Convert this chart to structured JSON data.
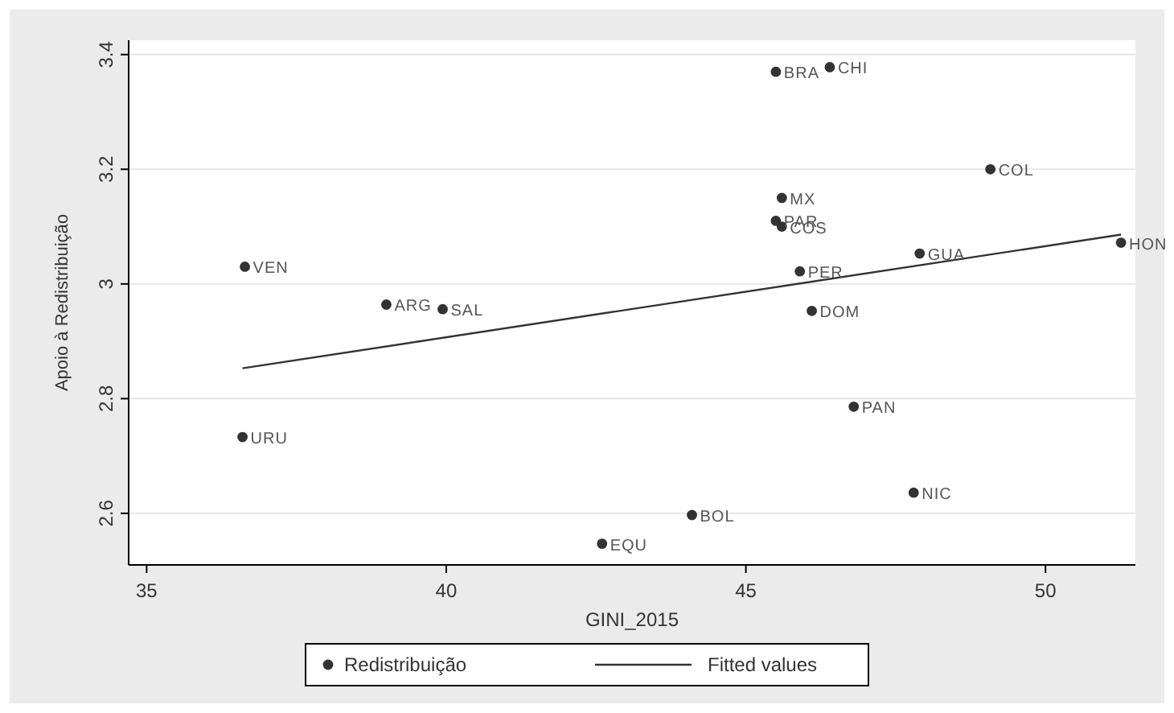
{
  "chart_data": {
    "type": "scatter",
    "xlabel": "GINI_2015",
    "ylabel": "Apoio à Redistribuição",
    "xlim": [
      34.7,
      51.5
    ],
    "xticks": [
      35,
      40,
      45,
      50
    ],
    "ylim": [
      2.51,
      3.425
    ],
    "yticks": [
      2.6,
      2.8,
      3,
      3.2,
      3.4
    ],
    "grid": "y",
    "legend": "bottom",
    "series": [
      {
        "name": "Redistribuição",
        "marker": "circle",
        "color": "#333333",
        "x": [
          36.64,
          39.0,
          39.94,
          36.6,
          45.5,
          46.4,
          49.08,
          45.6,
          45.5,
          45.6,
          45.9,
          47.9,
          51.26,
          46.1,
          46.8,
          47.8,
          44.1,
          42.6
        ],
        "values": [
          3.03,
          2.964,
          2.956,
          2.733,
          3.37,
          3.378,
          3.2,
          3.15,
          3.11,
          3.1,
          3.022,
          3.053,
          3.072,
          2.953,
          2.786,
          2.636,
          2.597,
          2.547
        ]
      },
      {
        "name": "Fitted values",
        "type": "line",
        "marker": "none",
        "color": "#333333",
        "x": [
          36.6,
          51.26
        ],
        "values": [
          2.853,
          3.086
        ]
      }
    ],
    "annotations": [
      {
        "text": "VEN",
        "x": 36.64,
        "y": 3.03
      },
      {
        "text": "ARG",
        "x": 39.0,
        "y": 2.964
      },
      {
        "text": "SAL",
        "x": 39.94,
        "y": 2.956
      },
      {
        "text": "URU",
        "x": 36.6,
        "y": 2.733
      },
      {
        "text": "BRA",
        "x": 45.5,
        "y": 3.37
      },
      {
        "text": "CHI",
        "x": 46.4,
        "y": 3.378
      },
      {
        "text": "COL",
        "x": 49.08,
        "y": 3.2
      },
      {
        "text": "MX",
        "x": 45.6,
        "y": 3.15
      },
      {
        "text": "PAR",
        "x": 45.5,
        "y": 3.11
      },
      {
        "text": "COS",
        "x": 45.6,
        "y": 3.1
      },
      {
        "text": "PER",
        "x": 45.9,
        "y": 3.022
      },
      {
        "text": "GUA",
        "x": 47.9,
        "y": 3.053
      },
      {
        "text": "HON",
        "x": 51.26,
        "y": 3.072
      },
      {
        "text": "DOM",
        "x": 46.1,
        "y": 2.953
      },
      {
        "text": "PAN",
        "x": 46.8,
        "y": 2.786
      },
      {
        "text": "NIC",
        "x": 47.8,
        "y": 2.636
      },
      {
        "text": "BOL",
        "x": 44.1,
        "y": 2.597
      },
      {
        "text": "EQU",
        "x": 42.6,
        "y": 2.547
      }
    ]
  }
}
